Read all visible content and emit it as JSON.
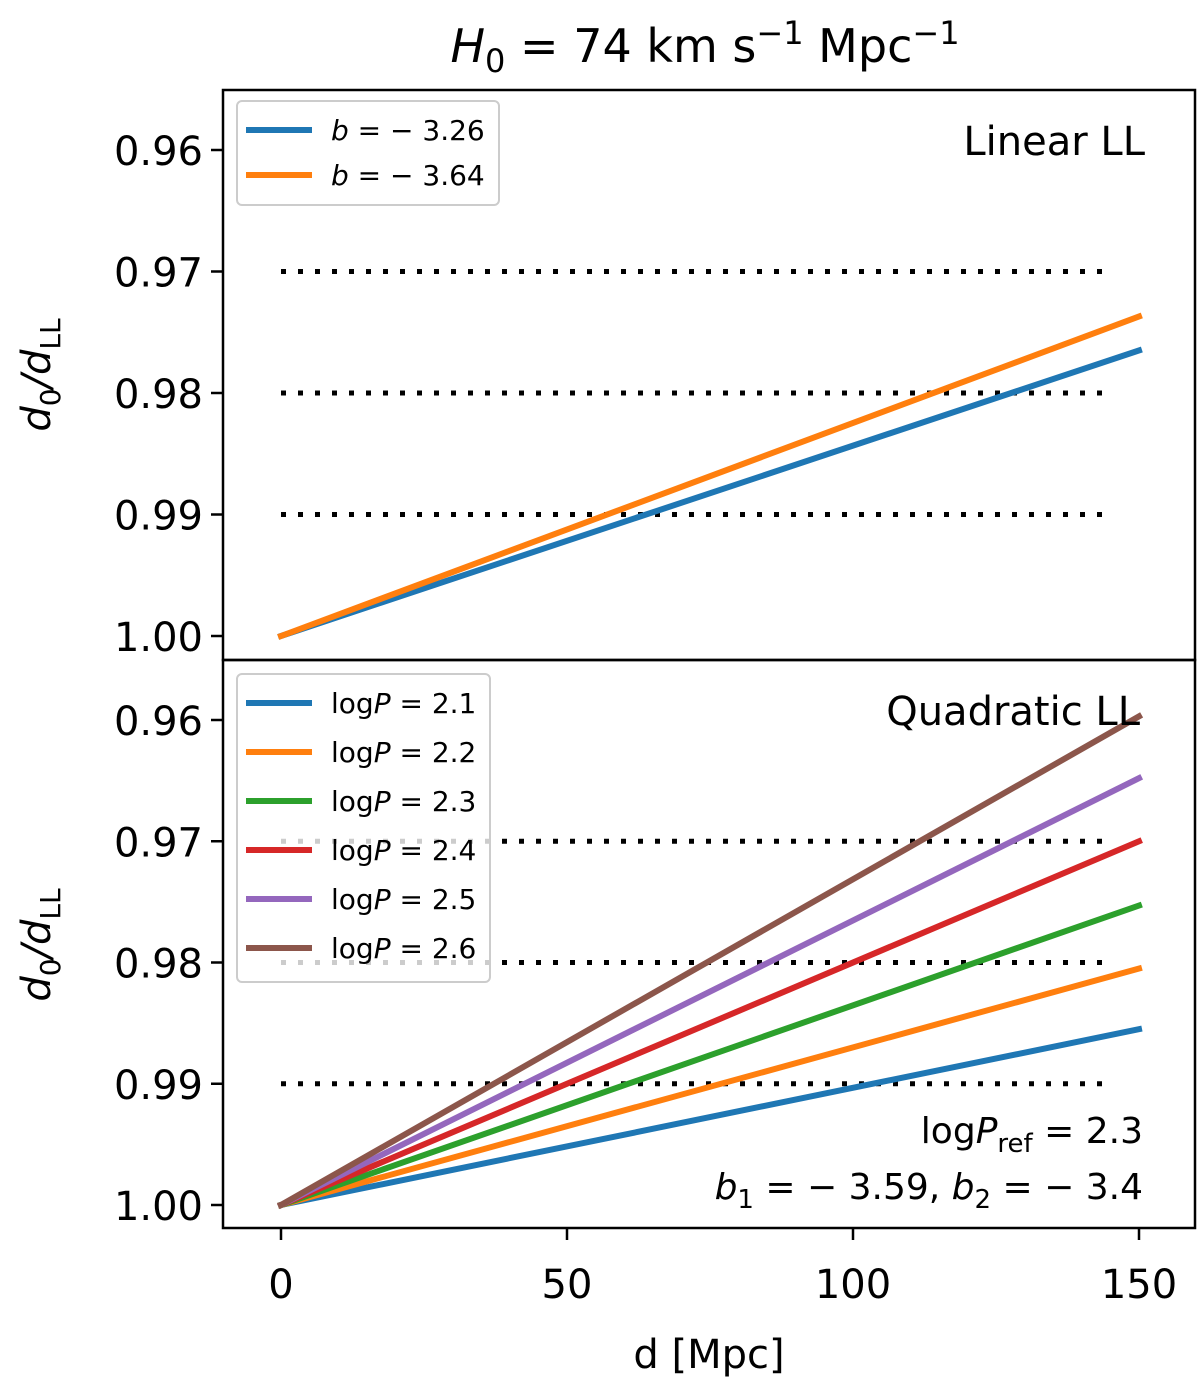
{
  "title": "H0 = 74 km s−1 Mpc−1",
  "title_parts": {
    "H": "H",
    "sub0": "0",
    "eq": " = 74 km s",
    "sup1": "−1",
    "mpc": " Mpc",
    "sup2": "−1"
  },
  "chart_data": [
    {
      "type": "line",
      "panel": "top",
      "annotation": "Linear LL",
      "ylabel": "d0/dLL",
      "ylabel_parts": {
        "d": "d",
        "sub0": "0",
        "slash": "/d",
        "subLL": "LL"
      },
      "ylim": [
        1.0,
        0.955
      ],
      "y_inverted": true,
      "yticks": [
        "0.96",
        "0.97",
        "0.98",
        "0.99",
        "1.00"
      ],
      "ytick_values": [
        0.96,
        0.97,
        0.98,
        0.99,
        1.0
      ],
      "reference_lines": [
        0.97,
        0.98,
        0.99
      ],
      "reference_x_range": [
        0,
        145
      ],
      "legend_position": "top-left",
      "series": [
        {
          "name": "b = −3.26",
          "label_var": "b",
          "label_rest": " = − 3.26",
          "color": "#1f77b4",
          "x": [
            0,
            150
          ],
          "y": [
            1.0,
            0.9765
          ]
        },
        {
          "name": "b = −3.64",
          "label_var": "b",
          "label_rest": " = − 3.64",
          "color": "#ff7f0e",
          "x": [
            0,
            150
          ],
          "y": [
            1.0,
            0.9737
          ]
        }
      ]
    },
    {
      "type": "line",
      "panel": "bottom",
      "annotation": "Quadratic LL",
      "ylabel": "d0/dLL",
      "ylim": [
        1.0,
        0.955
      ],
      "y_inverted": true,
      "yticks": [
        "0.96",
        "0.97",
        "0.98",
        "0.99",
        "1.00"
      ],
      "ytick_values": [
        0.96,
        0.97,
        0.98,
        0.99,
        1.0
      ],
      "xlabel": "d [Mpc]",
      "xlim": [
        -10,
        160
      ],
      "xticks": [
        "0",
        "50",
        "100",
        "150"
      ],
      "xtick_values": [
        0,
        50,
        100,
        150
      ],
      "reference_lines": [
        0.97,
        0.98,
        0.99
      ],
      "reference_x_range": [
        0,
        145
      ],
      "legend_position": "top-left",
      "notes": [
        {
          "text": "logPref = 2.3",
          "parts": [
            "log",
            "P",
            "ref",
            " = 2.3"
          ]
        },
        {
          "text": "b1 = −3.59, b2 = −3.4",
          "parts": [
            "b",
            "1",
            " = − 3.59, ",
            "b",
            "2",
            " = − 3.4"
          ]
        }
      ],
      "series": [
        {
          "name": "logP = 2.1",
          "label_rest": " = 2.1",
          "color": "#1f77b4",
          "x": [
            0,
            150
          ],
          "y": [
            1.0,
            0.9855
          ]
        },
        {
          "name": "logP = 2.2",
          "label_rest": " = 2.2",
          "color": "#ff7f0e",
          "x": [
            0,
            150
          ],
          "y": [
            1.0,
            0.9805
          ]
        },
        {
          "name": "logP = 2.3",
          "label_rest": " = 2.3",
          "color": "#2ca02c",
          "x": [
            0,
            150
          ],
          "y": [
            1.0,
            0.9753
          ]
        },
        {
          "name": "logP = 2.4",
          "label_rest": " = 2.4",
          "color": "#d62728",
          "x": [
            0,
            150
          ],
          "y": [
            1.0,
            0.97
          ]
        },
        {
          "name": "logP = 2.5",
          "label_rest": " = 2.5",
          "color": "#9467bd",
          "x": [
            0,
            150
          ],
          "y": [
            1.0,
            0.9648
          ]
        },
        {
          "name": "logP = 2.6",
          "label_rest": " = 2.6",
          "color": "#8c564b",
          "x": [
            0,
            150
          ],
          "y": [
            1.0,
            0.9597
          ]
        }
      ]
    }
  ]
}
